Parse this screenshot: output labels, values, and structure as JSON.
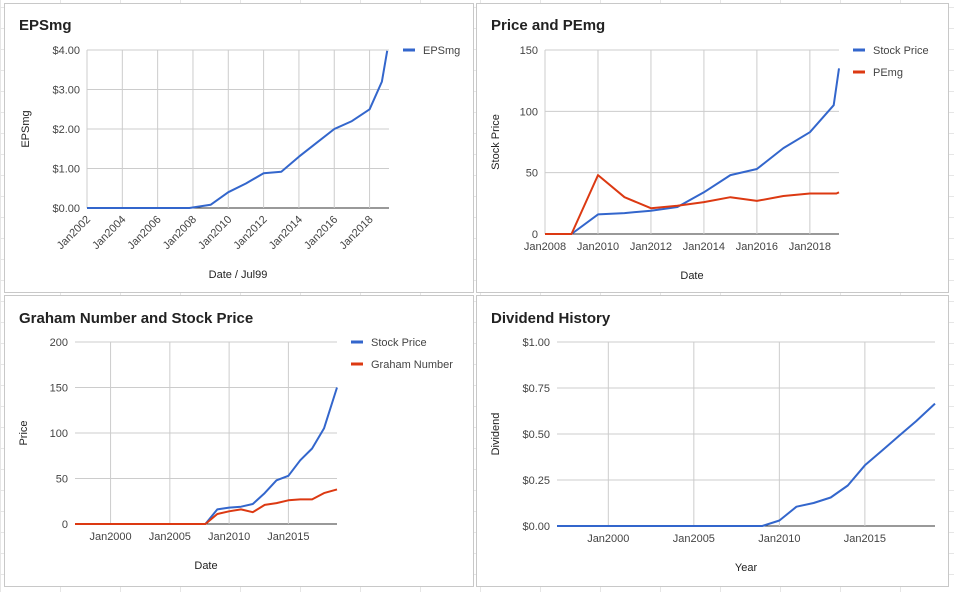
{
  "charts": [
    {
      "type": "line",
      "title": "EPSmg",
      "xlabel": "Date / Jul99",
      "ylabel": "EPSmg",
      "x_ticks": [
        "Jan2002",
        "Jan2004",
        "Jan2006",
        "Jan2008",
        "Jan2010",
        "Jan2012",
        "Jan2014",
        "Jan2016",
        "Jan2018"
      ],
      "x_tick_values": [
        2002,
        2004,
        2006,
        2008,
        2010,
        2012,
        2014,
        2016,
        2018
      ],
      "xlim": [
        2002,
        2019.1
      ],
      "y_ticks": [
        "$0.00",
        "$1.00",
        "$2.00",
        "$3.00",
        "$4.00"
      ],
      "y_tick_values": [
        0,
        1,
        2,
        3,
        4
      ],
      "ylim": [
        0,
        4
      ],
      "x_tick_rotate": true,
      "legend": "right",
      "series": [
        {
          "name": "EPSmg",
          "color": "#3366cc",
          "x": [
            2002,
            2007.8,
            2009,
            2010,
            2011,
            2012,
            2013,
            2014,
            2015,
            2016,
            2017,
            2018,
            2018.7,
            2019
          ],
          "y": [
            0,
            0,
            0.08,
            0.4,
            0.62,
            0.88,
            0.92,
            1.3,
            1.65,
            2.0,
            2.2,
            2.5,
            3.2,
            3.98
          ]
        }
      ]
    },
    {
      "type": "line",
      "title": "Price and PEmg",
      "xlabel": "Date",
      "ylabel": "Stock Price",
      "x_ticks": [
        "Jan2008",
        "Jan2010",
        "Jan2012",
        "Jan2014",
        "Jan2016",
        "Jan2018"
      ],
      "x_tick_values": [
        2008,
        2010,
        2012,
        2014,
        2016,
        2018
      ],
      "xlim": [
        2008,
        2019.1
      ],
      "y_ticks": [
        "0",
        "50",
        "100",
        "150"
      ],
      "y_tick_values": [
        0,
        50,
        100,
        150
      ],
      "ylim": [
        0,
        150
      ],
      "x_tick_rotate": false,
      "legend": "right",
      "series": [
        {
          "name": "Stock Price",
          "color": "#3366cc",
          "x": [
            2008,
            2009,
            2010,
            2011,
            2012,
            2013,
            2014,
            2015,
            2016,
            2017,
            2018,
            2018.9,
            2019.1
          ],
          "y": [
            0,
            0,
            16,
            17,
            19,
            22,
            34,
            48,
            53,
            70,
            83,
            105,
            135
          ]
        },
        {
          "name": "PEmg",
          "color": "#dc3912",
          "x": [
            2008,
            2009,
            2010,
            2011,
            2012,
            2013,
            2014,
            2015,
            2016,
            2017,
            2018,
            2019,
            2019.1
          ],
          "y": [
            0,
            0,
            48,
            30,
            21,
            23,
            26,
            30,
            27,
            31,
            33,
            33,
            34
          ]
        }
      ]
    },
    {
      "type": "line",
      "title": "Graham Number and Stock Price",
      "xlabel": "Date",
      "ylabel": "Price",
      "x_ticks": [
        "Jan2000",
        "Jan2005",
        "Jan2010",
        "Jan2015"
      ],
      "x_tick_values": [
        2000,
        2005,
        2010,
        2015
      ],
      "xlim": [
        1997,
        2019.1
      ],
      "y_ticks": [
        "0",
        "50",
        "100",
        "150",
        "200"
      ],
      "y_tick_values": [
        0,
        50,
        100,
        150,
        200
      ],
      "ylim": [
        0,
        200
      ],
      "x_tick_rotate": false,
      "legend": "right",
      "series": [
        {
          "name": "Stock Price",
          "color": "#3366cc",
          "x": [
            1997,
            2008,
            2009,
            2010,
            2011,
            2012,
            2013,
            2014,
            2015,
            2016,
            2017,
            2018,
            2019.1
          ],
          "y": [
            0,
            0,
            16,
            18,
            19,
            22,
            34,
            48,
            53,
            70,
            83,
            105,
            150
          ]
        },
        {
          "name": "Graham Number",
          "color": "#dc3912",
          "x": [
            1997,
            2008,
            2009,
            2010,
            2011,
            2012,
            2013,
            2014,
            2015,
            2016,
            2017,
            2018,
            2019.1
          ],
          "y": [
            0,
            0,
            11,
            14,
            16,
            13,
            21,
            23,
            26,
            27,
            27,
            34,
            38
          ]
        }
      ]
    },
    {
      "type": "line",
      "title": "Dividend History",
      "xlabel": "Year",
      "ylabel": "Dividend",
      "x_ticks": [
        "Jan2000",
        "Jan2005",
        "Jan2010",
        "Jan2015"
      ],
      "x_tick_values": [
        2000,
        2005,
        2010,
        2015
      ],
      "xlim": [
        1997,
        2019.1
      ],
      "y_ticks": [
        "$0.00",
        "$0.25",
        "$0.50",
        "$0.75",
        "$1.00"
      ],
      "y_tick_values": [
        0,
        0.25,
        0.5,
        0.75,
        1.0
      ],
      "ylim": [
        0,
        1
      ],
      "x_tick_rotate": false,
      "legend": "none",
      "series": [
        {
          "name": "",
          "color": "#3366cc",
          "x": [
            1997,
            2009,
            2010,
            2011,
            2012,
            2013,
            2014,
            2015,
            2016,
            2017,
            2018,
            2019.1
          ],
          "y": [
            0,
            0,
            0.03,
            0.105,
            0.125,
            0.155,
            0.22,
            0.33,
            0.41,
            0.49,
            0.57,
            0.665
          ]
        }
      ]
    }
  ]
}
